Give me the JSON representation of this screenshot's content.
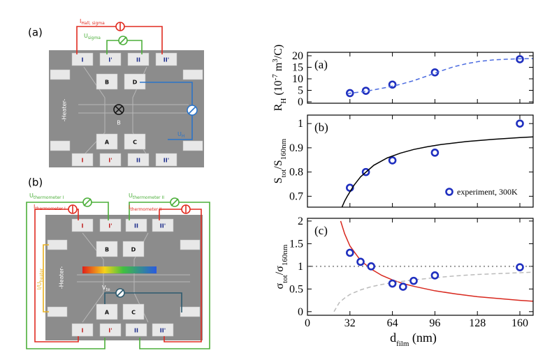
{
  "diagram": {
    "a": {
      "label": "(a)",
      "current": {
        "main": "I",
        "sub": "Hall, sigma"
      },
      "voltage": {
        "main": "U",
        "sub": "sigma"
      },
      "hall": {
        "main": "U",
        "sub": "H"
      },
      "heater": "-Heater-",
      "field": "B",
      "pads_top": [
        "I",
        "I'",
        "II",
        "II'"
      ],
      "pads_mid": [
        "B",
        "D"
      ],
      "pads_low": [
        "A",
        "C"
      ],
      "pads_bottom": [
        "I",
        "I'",
        "II",
        "II'"
      ]
    },
    "b": {
      "label": "(b)",
      "u1": {
        "main": "U",
        "sub": "thermometer I"
      },
      "i1": {
        "main": "I",
        "sub": "thermometer I"
      },
      "u2": {
        "main": "U",
        "sub": "thermometer II"
      },
      "i2": {
        "main": "I",
        "sub": "thermometer II"
      },
      "heaterdrive": {
        "main": "I/U",
        "sub": "heater"
      },
      "vte": {
        "main": "V",
        "sub": "te"
      },
      "heater": "-Heater-",
      "pads_top": [
        "I",
        "I'",
        "II",
        "II'"
      ],
      "pads_mid": [
        "B",
        "D"
      ],
      "pads_low": [
        "A",
        "C"
      ],
      "pads_bottom": [
        "I",
        "I'",
        "II",
        "II'"
      ]
    }
  },
  "chart_data": [
    {
      "type": "scatter",
      "label": "(a)",
      "ylabel": [
        {
          "text": "R"
        },
        {
          "text": "H",
          "shift": "sub"
        },
        {
          "text": " (10"
        },
        {
          "text": "-7",
          "shift": "super"
        },
        {
          "text": " m"
        },
        {
          "text": "3",
          "shift": "super"
        },
        {
          "text": "/C)"
        }
      ],
      "xlim": [
        0,
        170
      ],
      "xticks": [
        0,
        32,
        64,
        96,
        128,
        160
      ],
      "show_xticklabels": false,
      "ylim": [
        -0.6,
        21.5
      ],
      "yticks": [
        0,
        5,
        10,
        15,
        20
      ],
      "series": [
        {
          "mode": "markers",
          "color": "#1f2fbf",
          "x": [
            32,
            44,
            64,
            96,
            160
          ],
          "values": [
            3.8,
            4.8,
            7.5,
            12.8,
            18.5
          ]
        },
        {
          "mode": "line",
          "style": "dashed",
          "color": "#4b6be0",
          "x": [
            30,
            40,
            50,
            60,
            70,
            80,
            90,
            100,
            110,
            120,
            130,
            140,
            150,
            160,
            170
          ],
          "values": [
            3.6,
            4.3,
            5.2,
            6.3,
            7.6,
            9.2,
            11.2,
            13.3,
            15.2,
            16.6,
            17.6,
            18.2,
            18.5,
            18.7,
            18.8
          ]
        }
      ]
    },
    {
      "type": "scatter",
      "label": "(b)",
      "ylabel": [
        {
          "text": "S"
        },
        {
          "text": "tot",
          "shift": "sub"
        },
        {
          "text": "/S"
        },
        {
          "text": "160nm",
          "shift": "sub"
        }
      ],
      "xlim": [
        0,
        170
      ],
      "xticks": [
        0,
        32,
        64,
        96,
        128,
        160
      ],
      "show_xticklabels": false,
      "ylim": [
        0.655,
        1.035
      ],
      "yticks": [
        0.7,
        0.8,
        0.9,
        1
      ],
      "legend": "lower right",
      "series": [
        {
          "name": "experiment, 300K",
          "mode": "markers",
          "color": "#1f2fbf",
          "x": [
            32,
            44,
            64,
            96,
            160
          ],
          "values": [
            0.735,
            0.8,
            0.848,
            0.88,
            1.0
          ]
        },
        {
          "mode": "line",
          "style": "solid",
          "color": "#000000",
          "x": [
            26,
            28,
            30,
            35,
            40,
            50,
            60,
            70,
            80,
            90,
            100,
            120,
            140,
            160,
            170
          ],
          "values": [
            0.655,
            0.68,
            0.7,
            0.745,
            0.78,
            0.828,
            0.858,
            0.878,
            0.893,
            0.904,
            0.913,
            0.926,
            0.935,
            0.942,
            0.945
          ]
        }
      ]
    },
    {
      "type": "scatter",
      "label": "(c)",
      "ylabel": [
        {
          "text": "σ"
        },
        {
          "text": "tot",
          "shift": "sub"
        },
        {
          "text": "/σ"
        },
        {
          "text": "160nm",
          "shift": "sub"
        }
      ],
      "xlabel": [
        {
          "text": "d"
        },
        {
          "text": "film",
          "shift": "sub"
        },
        {
          "text": " (nm)"
        }
      ],
      "xlim": [
        0,
        170
      ],
      "xticks": [
        0,
        32,
        64,
        96,
        128,
        160
      ],
      "show_xticklabels": true,
      "ylim": [
        -0.08,
        2.06
      ],
      "yticks": [
        0,
        0.5,
        1,
        1.5,
        2
      ],
      "series": [
        {
          "mode": "line",
          "style": "solid",
          "color": "#d8281e",
          "x": [
            25,
            28,
            32,
            40,
            48,
            56,
            64,
            72,
            80,
            96,
            112,
            128,
            144,
            160,
            170
          ],
          "values": [
            2.0,
            1.72,
            1.45,
            1.13,
            0.94,
            0.8,
            0.7,
            0.62,
            0.56,
            0.46,
            0.39,
            0.33,
            0.29,
            0.25,
            0.23
          ]
        },
        {
          "mode": "line",
          "style": "dotted",
          "color": "#999999",
          "x": [
            0,
            170
          ],
          "values": [
            1,
            1
          ]
        },
        {
          "mode": "line",
          "style": "dashed",
          "color": "#bbbbbb",
          "x": [
            20,
            24,
            28,
            32,
            40,
            48,
            56,
            64,
            80,
            96,
            112,
            128,
            144,
            160,
            170
          ],
          "values": [
            0,
            0.2,
            0.3,
            0.38,
            0.48,
            0.55,
            0.6,
            0.64,
            0.7,
            0.75,
            0.79,
            0.82,
            0.84,
            0.86,
            0.87
          ]
        },
        {
          "mode": "markers",
          "color": "#1f2fbf",
          "x": [
            32,
            40,
            48,
            64,
            72,
            80,
            96,
            160
          ],
          "values": [
            1.3,
            1.1,
            1.0,
            0.62,
            0.55,
            0.68,
            0.8,
            0.98
          ]
        }
      ]
    }
  ]
}
